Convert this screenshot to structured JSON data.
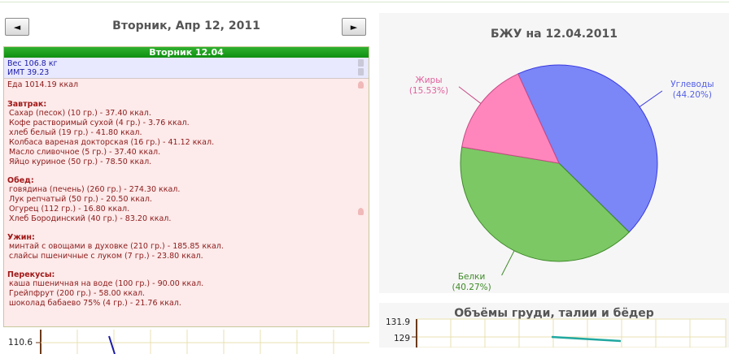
{
  "nav": {
    "prev_glyph": "◄",
    "next_glyph": "►",
    "date_title": "Вторник, Апр 12, 2011"
  },
  "day": {
    "header": "Вторник 12.04",
    "weight": "Вес 106.8 кг",
    "bmi": "ИМТ 39.23",
    "food_total": "Еда 1014.19 ккал",
    "meals": [
      {
        "title": "Завтрак:",
        "items": [
          "Сахар (песок) (10 гр.) - 37.40 ккал.",
          "Кофе растворимый сухой (4 гр.) - 3.76 ккал.",
          "хлеб белый (19 гр.) - 41.80 ккал.",
          "Колбаса вареная докторская (16 гр.) - 41.12 ккал.",
          "Масло сливочное (5 гр.) - 37.40 ккал.",
          "Яйцо куриное (50 гр.) - 78.50 ккал."
        ]
      },
      {
        "title": "Обед:",
        "items": [
          "говядина (печень) (260 гр.) - 274.30 ккал.",
          "Лук репчатый (50 гр.) - 20.50 ккал.",
          "Огурец (112 гр.) - 16.80 ккал.",
          "Хлеб Бородинский (40 гр.) - 83.20 ккал."
        ]
      },
      {
        "title": "Ужин:",
        "items": [
          "минтай с овощами в духовке (210 гр.) - 185.85 ккал.",
          "слайсы пшеничные с луком (7 гр.) - 23.80 ккал."
        ]
      },
      {
        "title": "Перекусы:",
        "items": [
          "каша пшеничная на воде (100 гр.) - 90.00 ккал.",
          "Грейпфрут (200 гр.) - 58.00 ккал.",
          "шоколад бабаево 75% (4 гр.) - 21.76 ккал."
        ]
      }
    ]
  },
  "weight_chart": {
    "y_tick": "110.6"
  },
  "chart_data": [
    {
      "type": "pie",
      "title": "БЖУ на 12.04.2011",
      "slices": [
        {
          "name": "Углеводы",
          "label": "(44.20%)",
          "value": 44.2,
          "color": "#7b86f7",
          "edge": "#3a3ae0"
        },
        {
          "name": "Белки",
          "label": "(40.27%)",
          "value": 40.27,
          "color": "#7cc865",
          "edge": "#3e8a28"
        },
        {
          "name": "Жиры",
          "label": "(15.53%)",
          "value": 15.53,
          "color": "#ff86bc",
          "edge": "#c84a86"
        }
      ]
    },
    {
      "type": "line",
      "title": "Объёмы груди, талии и бёдер",
      "y_ticks": [
        "131.9",
        "129"
      ],
      "series": [
        {
          "values": [
            129,
            128.8
          ],
          "color": "#20a8a0"
        }
      ]
    }
  ]
}
